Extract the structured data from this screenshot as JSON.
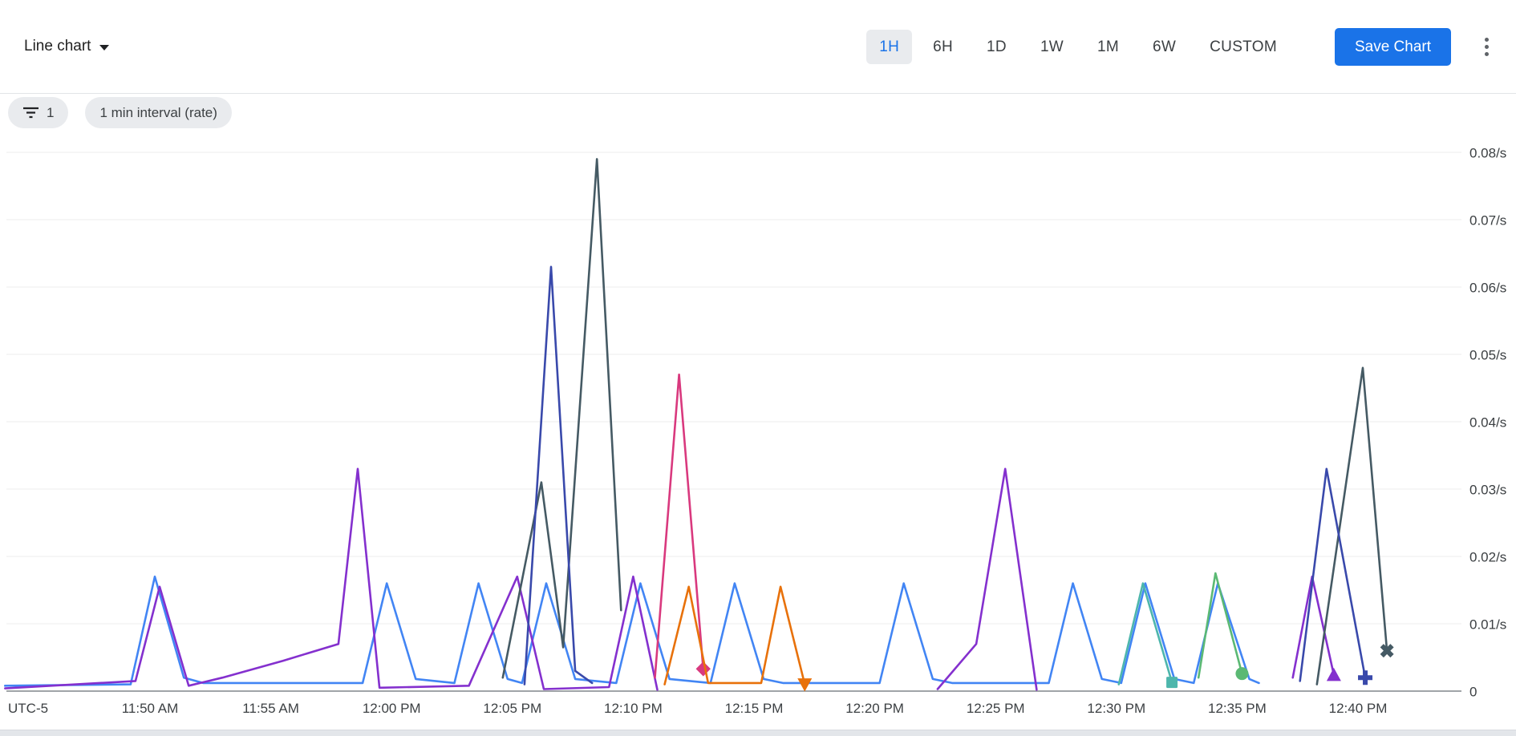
{
  "toolbar": {
    "chart_type_label": "Line chart",
    "time_ranges": [
      "1H",
      "6H",
      "1D",
      "1W",
      "1M",
      "6W",
      "CUSTOM"
    ],
    "selected_time_range": "1H",
    "save_button_label": "Save Chart"
  },
  "filters": {
    "filter_count": "1",
    "interval_chip_label": "1 min interval (rate)"
  },
  "colors": {
    "accent_blue": "#1a73e8",
    "selected_range_bg": "#e9ebee",
    "grid_line": "#ececee",
    "axis_line": "#80868b",
    "axis_text": "#3c4043"
  },
  "chart_data": {
    "type": "line",
    "title": "",
    "x_axis": {
      "timezone_label": "UTC-5",
      "domain_minutes": [
        44,
        104
      ],
      "ticks": [
        {
          "label": "11:50 AM",
          "minute": 50
        },
        {
          "label": "11:55 AM",
          "minute": 55
        },
        {
          "label": "12:00 PM",
          "minute": 60
        },
        {
          "label": "12:05 PM",
          "minute": 65
        },
        {
          "label": "12:10 PM",
          "minute": 70
        },
        {
          "label": "12:15 PM",
          "minute": 75
        },
        {
          "label": "12:20 PM",
          "minute": 80
        },
        {
          "label": "12:25 PM",
          "minute": 85
        },
        {
          "label": "12:30 PM",
          "minute": 90
        },
        {
          "label": "12:35 PM",
          "minute": 95
        },
        {
          "label": "12:40 PM",
          "minute": 100
        }
      ]
    },
    "y_axis": {
      "unit": "/s",
      "range": [
        0,
        0.085
      ],
      "ticks": [
        {
          "label": "0",
          "value": 0
        },
        {
          "label": "0.01/s",
          "value": 0.01
        },
        {
          "label": "0.02/s",
          "value": 0.02
        },
        {
          "label": "0.03/s",
          "value": 0.03
        },
        {
          "label": "0.04/s",
          "value": 0.04
        },
        {
          "label": "0.05/s",
          "value": 0.05
        },
        {
          "label": "0.06/s",
          "value": 0.06
        },
        {
          "label": "0.07/s",
          "value": 0.07
        },
        {
          "label": "0.08/s",
          "value": 0.08
        }
      ]
    },
    "legend": "none",
    "grid": "horizontal-only",
    "series": [
      {
        "name": "blue",
        "color": "#4285F4",
        "end_marker": null,
        "segments": [
          [
            [
              44,
              0.0008
            ],
            [
              49.2,
              0.001
            ],
            [
              50.2,
              0.017
            ],
            [
              51.4,
              0.002
            ],
            [
              52.2,
              0.0012
            ],
            [
              58.8,
              0.0012
            ],
            [
              59.8,
              0.016
            ],
            [
              61.0,
              0.0018
            ],
            [
              62.6,
              0.0012
            ],
            [
              63.6,
              0.016
            ],
            [
              64.8,
              0.0018
            ],
            [
              65.4,
              0.0012
            ],
            [
              66.4,
              0.016
            ],
            [
              67.6,
              0.0018
            ],
            [
              69.3,
              0.0012
            ],
            [
              70.3,
              0.016
            ],
            [
              71.5,
              0.0018
            ],
            [
              73.2,
              0.0012
            ],
            [
              74.2,
              0.016
            ],
            [
              75.4,
              0.0018
            ],
            [
              76.2,
              0.0012
            ],
            [
              80.2,
              0.0012
            ],
            [
              81.2,
              0.016
            ],
            [
              82.4,
              0.0018
            ],
            [
              83.2,
              0.0012
            ],
            [
              87.2,
              0.0012
            ],
            [
              88.2,
              0.016
            ],
            [
              89.4,
              0.0018
            ],
            [
              90.2,
              0.0012
            ],
            [
              91.2,
              0.016
            ],
            [
              92.4,
              0.0018
            ],
            [
              93.2,
              0.0012
            ],
            [
              94.2,
              0.016
            ],
            [
              95.5,
              0.0018
            ],
            [
              95.9,
              0.0012
            ]
          ]
        ]
      },
      {
        "name": "purple",
        "color": "#8430CE",
        "end_marker": "triangle-up",
        "segments": [
          [
            [
              44,
              0.0004
            ],
            [
              49.4,
              0.0015
            ],
            [
              50.4,
              0.0155
            ],
            [
              51.6,
              0.0008
            ],
            [
              53.0,
              0.002
            ],
            [
              55.5,
              0.0045
            ],
            [
              57.8,
              0.007
            ],
            [
              58.6,
              0.033
            ],
            [
              59.5,
              0.0005
            ],
            [
              63.2,
              0.0008
            ],
            [
              65.2,
              0.017
            ],
            [
              66.3,
              0.0003
            ],
            [
              69.0,
              0.0006
            ],
            [
              70.0,
              0.017
            ],
            [
              71.0,
              0.0002
            ]
          ],
          [
            [
              82.6,
              0.0003
            ],
            [
              84.2,
              0.007
            ],
            [
              85.4,
              0.033
            ],
            [
              86.7,
              0.0002
            ]
          ],
          [
            [
              97.3,
              0.002
            ],
            [
              98.1,
              0.017
            ],
            [
              99.0,
              0.0024
            ]
          ]
        ]
      },
      {
        "name": "slate",
        "color": "#455A64",
        "end_marker": "x",
        "segments": [
          [
            [
              64.6,
              0.002
            ],
            [
              66.2,
              0.031
            ],
            [
              67.1,
              0.0065
            ],
            [
              68.5,
              0.079
            ],
            [
              69.5,
              0.012
            ]
          ],
          [
            [
              98.3,
              0.001
            ],
            [
              100.2,
              0.048
            ],
            [
              101.2,
              0.006
            ]
          ]
        ]
      },
      {
        "name": "navy",
        "color": "#3949AB",
        "end_marker": "plus",
        "segments": [
          [
            [
              65.5,
              0.001
            ],
            [
              66.6,
              0.063
            ],
            [
              67.6,
              0.003
            ],
            [
              68.3,
              0.0012
            ]
          ],
          [
            [
              97.6,
              0.0015
            ],
            [
              98.7,
              0.033
            ],
            [
              100.3,
              0.002
            ]
          ]
        ]
      },
      {
        "name": "pink",
        "color": "#D9397E",
        "end_marker": "diamond",
        "segments": [
          [
            [
              70.9,
              0.002
            ],
            [
              71.9,
              0.047
            ],
            [
              72.9,
              0.0033
            ]
          ]
        ]
      },
      {
        "name": "orange",
        "color": "#E8710A",
        "end_marker": "triangle-down",
        "segments": [
          [
            [
              71.3,
              0.001
            ],
            [
              72.3,
              0.0155
            ],
            [
              73.1,
              0.0012
            ],
            [
              75.3,
              0.0012
            ],
            [
              76.1,
              0.0155
            ],
            [
              77.1,
              0.001
            ]
          ]
        ]
      },
      {
        "name": "teal",
        "color": "#4DB6AC",
        "end_marker": "square",
        "segments": [
          [
            [
              90.1,
              0.001
            ],
            [
              91.1,
              0.016
            ],
            [
              92.3,
              0.0013
            ]
          ]
        ]
      },
      {
        "name": "green",
        "color": "#5BB974",
        "end_marker": "circle",
        "segments": [
          [
            [
              93.4,
              0.002
            ],
            [
              94.1,
              0.0175
            ],
            [
              95.2,
              0.0026
            ]
          ]
        ]
      }
    ]
  }
}
